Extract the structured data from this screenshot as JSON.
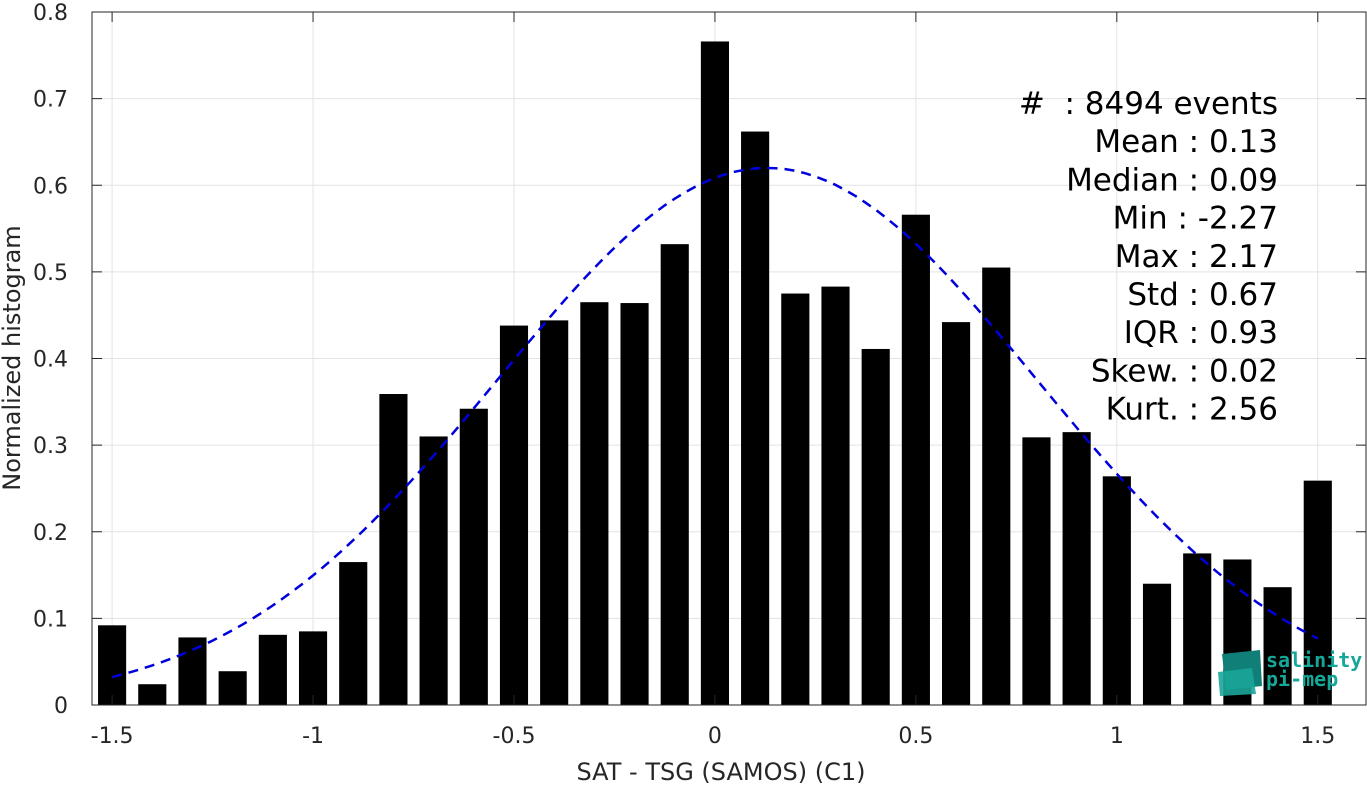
{
  "chart_data": {
    "type": "bar",
    "xlabel": "SAT - TSG (SAMOS) (C1)",
    "ylabel": "Normalized histogram",
    "xlim": [
      -1.55,
      1.62
    ],
    "ylim": [
      0,
      0.8
    ],
    "grid": true,
    "xticks": [
      -1.5,
      -1,
      -0.5,
      0,
      0.5,
      1,
      1.5
    ],
    "xtick_labels": [
      "-1.5",
      "-1",
      "-0.5",
      "0",
      "0.5",
      "1",
      "1.5"
    ],
    "yticks": [
      0,
      0.1,
      0.2,
      0.3,
      0.4,
      0.5,
      0.6,
      0.7,
      0.8
    ],
    "ytick_labels": [
      "0",
      "0.1",
      "0.2",
      "0.3",
      "0.4",
      "0.5",
      "0.6",
      "0.7",
      "0.8"
    ],
    "bar_color": "#000000",
    "bars": {
      "x": [
        -1.5,
        -1.4,
        -1.3,
        -1.2,
        -1.1,
        -1.0,
        -0.9,
        -0.8,
        -0.7,
        -0.6,
        -0.5,
        -0.4,
        -0.3,
        -0.2,
        -0.1,
        0.0,
        0.1,
        0.2,
        0.3,
        0.4,
        0.5,
        0.6,
        0.7,
        0.8,
        0.9,
        1.0,
        1.1,
        1.2,
        1.3,
        1.4,
        1.5
      ],
      "values": [
        0.092,
        0.024,
        0.078,
        0.039,
        0.081,
        0.085,
        0.165,
        0.359,
        0.31,
        0.342,
        0.438,
        0.444,
        0.465,
        0.464,
        0.532,
        0.766,
        0.662,
        0.475,
        0.483,
        0.411,
        0.566,
        0.442,
        0.505,
        0.309,
        0.315,
        0.264,
        0.14,
        0.175,
        0.168,
        0.136,
        0.259
      ]
    },
    "fit_curve": {
      "type": "gaussian",
      "mean": 0.13,
      "std": 0.67,
      "x_range": [
        -1.5,
        1.5
      ],
      "color": "#0000dd",
      "style": "dashed"
    },
    "stats_lines": [
      "#  : 8494 events",
      "Mean : 0.13",
      "Median : 0.09",
      "Min : -2.27",
      "Max : 2.17",
      "Std : 0.67",
      "IQR : 0.93",
      "Skew. : 0.02",
      "Kurt. : 2.56"
    ],
    "logo": {
      "line1": "salinity",
      "line2": "pi-mep",
      "color": "#14a89a"
    }
  }
}
